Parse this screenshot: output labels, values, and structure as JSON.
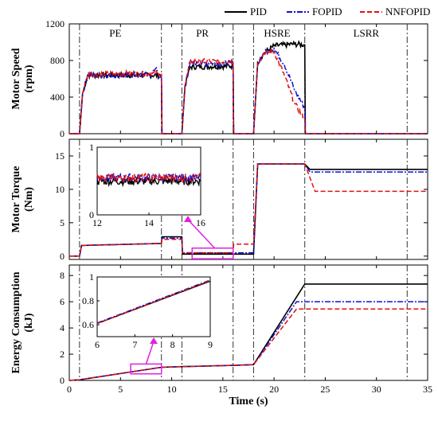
{
  "figure": {
    "legend": [
      {
        "name": "PID",
        "color": "#000000",
        "dash": "solid"
      },
      {
        "name": "FOPID",
        "color": "#1010d0",
        "dash": "dashdot"
      },
      {
        "name": "NNFOPID",
        "color": "#e01010",
        "dash": "dashed"
      }
    ],
    "xlabel": "Time (s)"
  },
  "chart_data": [
    {
      "type": "line",
      "ylabel": [
        "Motor Speed",
        "(rpm)"
      ],
      "xlim": [
        0,
        35
      ],
      "ylim": [
        0,
        1200
      ],
      "yticks": [
        "0",
        "400",
        "800",
        "1200"
      ],
      "phase_labels": [
        {
          "text": "PE",
          "x": 4.5
        },
        {
          "text": "PR",
          "x": 13
        },
        {
          "text": "HSRE",
          "x": 20.3
        },
        {
          "text": "LSRR",
          "x": 29
        }
      ],
      "vlines": [
        1,
        9,
        11,
        16,
        18,
        23,
        33
      ],
      "series": [
        {
          "name": "PID",
          "points": [
            [
              0,
              0
            ],
            [
              1,
              0
            ],
            [
              1.3,
              440
            ],
            [
              1.8,
              640
            ],
            [
              9,
              640
            ],
            [
              9.05,
              0
            ],
            [
              11,
              0
            ],
            [
              11.3,
              520
            ],
            [
              11.8,
              730
            ],
            [
              16,
              740
            ],
            [
              16.05,
              0
            ],
            [
              18,
              0
            ],
            [
              18.4,
              780
            ],
            [
              19,
              880
            ],
            [
              20,
              960
            ],
            [
              22,
              980
            ],
            [
              23,
              970
            ],
            [
              23.05,
              0
            ],
            [
              35,
              0
            ]
          ]
        },
        {
          "name": "FOPID",
          "points": [
            [
              0,
              0
            ],
            [
              1,
              0
            ],
            [
              1.3,
              440
            ],
            [
              1.8,
              640
            ],
            [
              8,
              640
            ],
            [
              8.5,
              720
            ],
            [
              8.8,
              600
            ],
            [
              9,
              640
            ],
            [
              9.05,
              0
            ],
            [
              11,
              0
            ],
            [
              11.3,
              520
            ],
            [
              11.8,
              770
            ],
            [
              16,
              770
            ],
            [
              16.05,
              0
            ],
            [
              18,
              0
            ],
            [
              18.4,
              780
            ],
            [
              19,
              880
            ],
            [
              20,
              930
            ],
            [
              21,
              760
            ],
            [
              22,
              480
            ],
            [
              23,
              280
            ],
            [
              23.05,
              0
            ],
            [
              35,
              0
            ]
          ]
        },
        {
          "name": "NNFOPID",
          "points": [
            [
              0,
              0
            ],
            [
              1,
              0
            ],
            [
              1.3,
              440
            ],
            [
              1.8,
              650
            ],
            [
              9,
              660
            ],
            [
              9.05,
              0
            ],
            [
              11,
              0
            ],
            [
              11.3,
              520
            ],
            [
              11.8,
              790
            ],
            [
              16,
              790
            ],
            [
              16.05,
              0
            ],
            [
              18,
              0
            ],
            [
              18.4,
              780
            ],
            [
              19,
              880
            ],
            [
              20,
              900
            ],
            [
              21,
              640
            ],
            [
              22,
              330
            ],
            [
              23,
              160
            ],
            [
              23.05,
              0
            ],
            [
              35,
              0
            ]
          ]
        }
      ],
      "noise_amplitude": 30
    },
    {
      "type": "line",
      "ylabel": [
        "Motor Torque",
        "(Nm)"
      ],
      "xlim": [
        0,
        35
      ],
      "ylim": [
        -0.5,
        17.5
      ],
      "yticks": [
        "0",
        "5",
        "10",
        "15"
      ],
      "vlines": [
        1,
        9,
        11,
        16,
        18,
        23,
        33
      ],
      "series": [
        {
          "name": "PID",
          "points": [
            [
              0,
              0
            ],
            [
              1,
              0
            ],
            [
              1.2,
              1.6
            ],
            [
              9,
              1.9
            ],
            [
              9.05,
              2.9
            ],
            [
              11,
              2.9
            ],
            [
              11.05,
              0.3
            ],
            [
              18,
              0.3
            ],
            [
              18.4,
              13.8
            ],
            [
              23,
              13.8
            ],
            [
              23.5,
              13.0
            ],
            [
              35,
              13.0
            ]
          ]
        },
        {
          "name": "FOPID",
          "points": [
            [
              0,
              0
            ],
            [
              1,
              0
            ],
            [
              1.2,
              1.6
            ],
            [
              9,
              1.9
            ],
            [
              9.05,
              2.7
            ],
            [
              11,
              2.7
            ],
            [
              11.05,
              0.5
            ],
            [
              18,
              0.5
            ],
            [
              18.4,
              13.8
            ],
            [
              23,
              13.8
            ],
            [
              23.5,
              12.6
            ],
            [
              35,
              12.6
            ]
          ]
        },
        {
          "name": "NNFOPID",
          "points": [
            [
              0,
              0
            ],
            [
              1,
              0
            ],
            [
              1.2,
              1.6
            ],
            [
              9,
              1.9
            ],
            [
              9.05,
              2.5
            ],
            [
              11,
              2.5
            ],
            [
              11.05,
              0.5
            ],
            [
              16,
              0.5
            ],
            [
              16.05,
              1.8
            ],
            [
              18,
              1.8
            ],
            [
              18.4,
              13.8
            ],
            [
              23,
              13.8
            ],
            [
              24,
              9.7
            ],
            [
              35,
              9.7
            ]
          ]
        }
      ],
      "inset": {
        "xlim": [
          12,
          16
        ],
        "ylim": [
          0,
          1
        ],
        "xticks": [
          "12",
          "14",
          "16"
        ],
        "yticks": [
          "0",
          "1"
        ],
        "series": [
          {
            "name": "PID",
            "mean": 0.5,
            "noise": 0.06
          },
          {
            "name": "FOPID",
            "mean": 0.55,
            "noise": 0.06
          },
          {
            "name": "NNFOPID",
            "mean": 0.55,
            "noise": 0.06
          }
        ]
      }
    },
    {
      "type": "line",
      "ylabel": [
        "Energy Consumption",
        "(kJ)"
      ],
      "xlim": [
        0,
        35
      ],
      "ylim": [
        0,
        8.8
      ],
      "xticks": [
        "0",
        "5",
        "10",
        "15",
        "20",
        "25",
        "30",
        "35"
      ],
      "yticks": [
        "0",
        "2",
        "4",
        "6",
        "8"
      ],
      "vlines": [
        1,
        9,
        11,
        16,
        18,
        23,
        33
      ],
      "series": [
        {
          "name": "PID",
          "points": [
            [
              0,
              0
            ],
            [
              1,
              0.05
            ],
            [
              9,
              1.0
            ],
            [
              11,
              1.05
            ],
            [
              16,
              1.15
            ],
            [
              18,
              1.2
            ],
            [
              23,
              7.35
            ],
            [
              35,
              7.35
            ]
          ]
        },
        {
          "name": "FOPID",
          "points": [
            [
              0,
              0
            ],
            [
              1,
              0.05
            ],
            [
              9,
              1.0
            ],
            [
              11,
              1.05
            ],
            [
              16,
              1.15
            ],
            [
              18,
              1.2
            ],
            [
              22.2,
              6.0
            ],
            [
              35,
              6.0
            ]
          ]
        },
        {
          "name": "NNFOPID",
          "points": [
            [
              0,
              0
            ],
            [
              1,
              0.05
            ],
            [
              9,
              1.0
            ],
            [
              11,
              1.05
            ],
            [
              16,
              1.15
            ],
            [
              18,
              1.2
            ],
            [
              22.2,
              5.45
            ],
            [
              35,
              5.45
            ]
          ]
        }
      ],
      "inset": {
        "xlim": [
          6,
          9
        ],
        "ylim": [
          0.5,
          1.0
        ],
        "xticks": [
          "6",
          "7",
          "8",
          "9"
        ],
        "yticks": [
          "0.6",
          "0.8",
          "1"
        ],
        "series": [
          {
            "name": "PID",
            "points": [
              [
                6,
                0.61
              ],
              [
                9,
                0.965
              ]
            ]
          },
          {
            "name": "FOPID",
            "points": [
              [
                6,
                0.615
              ],
              [
                9,
                0.975
              ]
            ]
          },
          {
            "name": "NNFOPID",
            "points": [
              [
                6,
                0.61
              ],
              [
                9,
                0.97
              ]
            ]
          }
        ]
      }
    }
  ]
}
